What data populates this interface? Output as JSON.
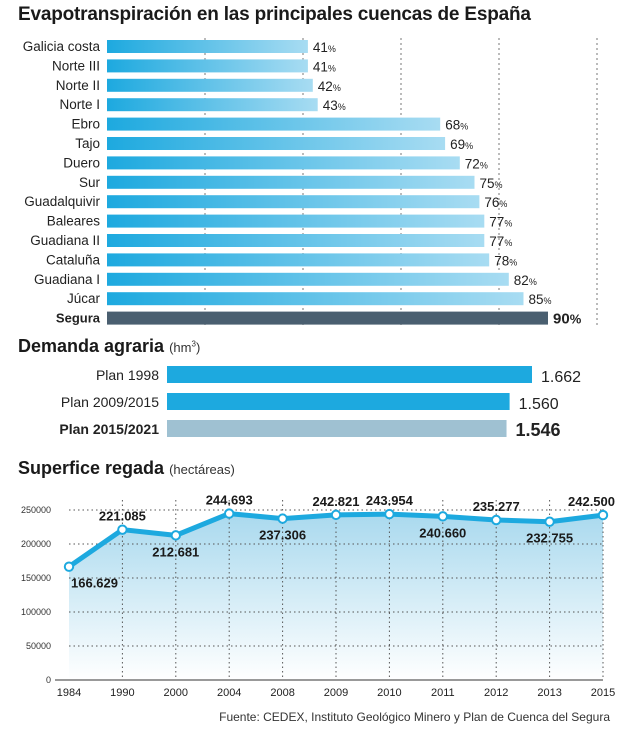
{
  "chart_data": [
    {
      "type": "bar",
      "title": "Evapotranspiración en las principales cuencas de España",
      "categories": [
        "Galicia costa",
        "Norte III",
        "Norte II",
        "Norte I",
        "Ebro",
        "Tajo",
        "Duero",
        "Sur",
        "Guadalquivir",
        "Baleares",
        "Guadiana II",
        "Cataluña",
        "Guadiana I",
        "Júcar",
        "Segura"
      ],
      "values": [
        41,
        41,
        42,
        43,
        68,
        69,
        72,
        75,
        76,
        77,
        77,
        78,
        82,
        85,
        90
      ],
      "value_labels": [
        "41",
        "41",
        "42",
        "43",
        "68",
        "69",
        "72",
        "75",
        "76",
        "77",
        "77",
        "78",
        "82",
        "85",
        "90"
      ],
      "unit": "%",
      "highlight": "Segura",
      "xlim": [
        0,
        100
      ],
      "orientation": "horizontal",
      "colors": {
        "bar": "#1da9df",
        "bar_light": "#a8dcf2",
        "highlight": "#4a5f70"
      }
    },
    {
      "type": "bar",
      "title": "Demanda agraria",
      "unit_label": "(hm",
      "unit_sup": "3",
      "unit_close": ")",
      "categories": [
        "Plan 1998",
        "Plan 2009/2015",
        "Plan 2015/2021"
      ],
      "values": [
        1662,
        1560,
        1546
      ],
      "value_labels": [
        "1.662",
        "1.560",
        "1.546"
      ],
      "highlight": "Plan 2015/2021",
      "orientation": "horizontal",
      "colors": {
        "bar": "#1da9df",
        "highlight": "#9fc1d2"
      }
    },
    {
      "type": "area",
      "title": "Superfice regada",
      "unit_label": "(hectáreas)",
      "x": [
        "1984",
        "1990",
        "2000",
        "2004",
        "2008",
        "2009",
        "2010",
        "2011",
        "2012",
        "2013",
        "2015"
      ],
      "values": [
        166629,
        221085,
        212681,
        244693,
        237306,
        242821,
        243954,
        240660,
        235277,
        232755,
        242500
      ],
      "value_labels": [
        "166.629",
        "221.085",
        "212.681",
        "244.693",
        "237.306",
        "242.821",
        "243.954",
        "240.660",
        "235.277",
        "232.755",
        "242.500"
      ],
      "ylim": [
        0,
        250000
      ],
      "yticks": [
        "0",
        "50000",
        "100000",
        "150000",
        "200000",
        "250000"
      ],
      "grid": true,
      "colors": {
        "line": "#1da9df",
        "fill_top": "#a9d9ee",
        "fill_bottom": "#ffffff"
      }
    }
  ],
  "source": "Fuente: CEDEX, Instituto Geológico Minero y Plan de Cuenca del Segura"
}
